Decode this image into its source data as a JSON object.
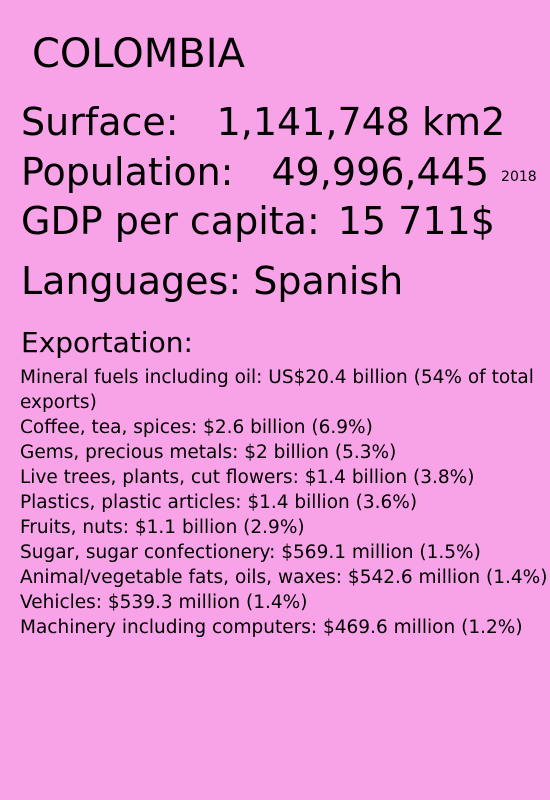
{
  "country": "COLOMBIA",
  "surface": {
    "label": "Surface:",
    "value": "1,141,748 km2"
  },
  "population": {
    "label": "Population:",
    "value": "49,996,445",
    "year": "2018"
  },
  "gdp": {
    "label": "GDP per capita:",
    "value": "15 711$"
  },
  "languages": {
    "text": "Languages: Spanish"
  },
  "exportation": {
    "heading": "Exportation:",
    "items": [
      "Mineral fuels including oil: US$20.4 billion (54% of total exports)",
      "Coffee, tea, spices: $2.6 billion (6.9%)",
      "Gems, precious metals: $2 billion (5.3%)",
      "Live trees, plants, cut flowers: $1.4 billion (3.8%)",
      "Plastics, plastic articles: $1.4 billion (3.6%)",
      "Fruits, nuts: $1.1 billion (2.9%)",
      "Sugar, sugar confectionery: $569.1 million (1.5%)",
      "Animal/vegetable fats, oils, waxes: $542.6 million (1.4%)",
      "Vehicles: $539.3 million (1.4%)",
      "Machinery including computers: $469.6 million (1.2%)"
    ]
  },
  "colors": {
    "background": "#f8a2e8",
    "text": "#000000"
  }
}
